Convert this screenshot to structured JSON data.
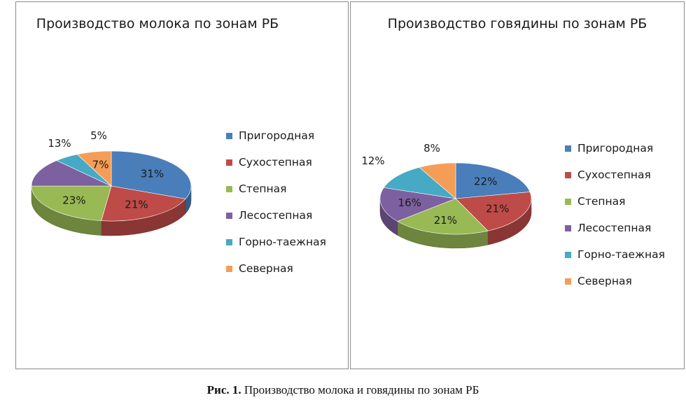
{
  "chart_data": [
    {
      "type": "pie",
      "title": "Производство молока по зонам РБ",
      "legend_position": "right",
      "categories": [
        "Пригородная",
        "Сухостепная",
        "Степная",
        "Лесостепная",
        "Горно-таежная",
        "Северная"
      ],
      "values": [
        31,
        21,
        23,
        13,
        5,
        7
      ],
      "labels": [
        "31%",
        "21%",
        "23%",
        "13%",
        "5%",
        "7%"
      ],
      "colors": [
        "#4a7ebb",
        "#be4b48",
        "#98b954",
        "#7d60a0",
        "#46aac5",
        "#f59d56"
      ]
    },
    {
      "type": "pie",
      "title": "Производство говядины по зонам РБ",
      "legend_position": "right",
      "categories": [
        "Пригородная",
        "Сухостепная",
        "Степная",
        "Лесостепная",
        "Горно-таежная",
        "Северная"
      ],
      "values": [
        22,
        21,
        21,
        16,
        12,
        8
      ],
      "labels": [
        "22%",
        "21%",
        "21%",
        "16%",
        "12%",
        "8%"
      ],
      "colors": [
        "#4a7ebb",
        "#be4b48",
        "#98b954",
        "#7d60a0",
        "#46aac5",
        "#f59d56"
      ]
    }
  ],
  "caption": {
    "prefix": "Рис. 1.",
    "text": " Производство молока и говядины по зонам РБ"
  }
}
